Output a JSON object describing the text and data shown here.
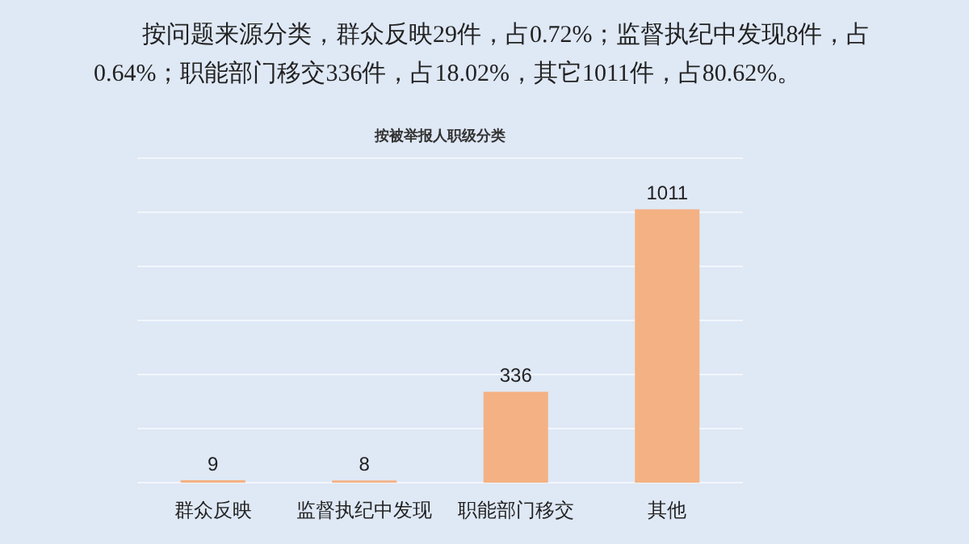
{
  "chart_data": {
    "type": "bar",
    "title": "按被举报人职级分类",
    "annotations": [
      "按问题来源分类，群众反映29件，占0.72%；监督执纪中发现8件，占0.64%；职能部门移交336件，占18.02%，其它1011件，占80.62%。"
    ],
    "categories": [
      "群众反映",
      "监督执纪中发现",
      "职能部门移交",
      "其他"
    ],
    "values": [
      9,
      8,
      336,
      1011
    ],
    "color": "#f4b183",
    "ylim": [
      0,
      1200
    ],
    "yticks": [
      {
        "value": 0,
        "label": null
      },
      {
        "value": 200,
        "label": null
      },
      {
        "value": 400,
        "label": null
      },
      {
        "value": 600,
        "label": null
      },
      {
        "value": 800,
        "label": null
      },
      {
        "value": 1000,
        "label": null
      },
      {
        "value": 1200,
        "label": null
      }
    ],
    "grid": "y",
    "data_labels": true
  }
}
